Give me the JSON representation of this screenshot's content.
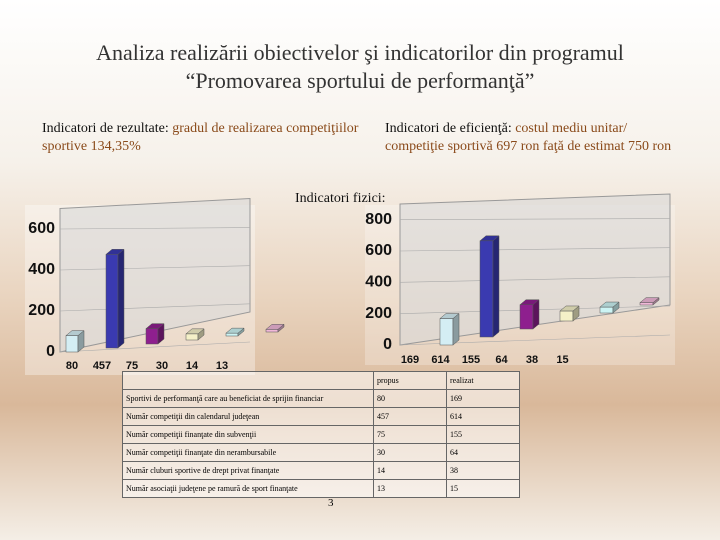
{
  "title": [
    "Analiza realizării obiectivelor şi indicatorilor din programul",
    "“Promovarea sportului de performanţă”"
  ],
  "indicators": {
    "results": {
      "label": "Indicatori de rezultate:",
      "text": "gradul de realizarea competiţiilor sportive 134,35%"
    },
    "efficiency": {
      "label": "Indicatori de eficienţă:",
      "text": "costul mediu unitar/ competiţie sportivă 697 ron faţă de estimat 750 ron"
    },
    "physical": {
      "label": "Indicatori fizici:"
    }
  },
  "chart_data": [
    {
      "type": "bar3d",
      "values": [
        80,
        457,
        75,
        30,
        14,
        13
      ],
      "colors": [
        "#d4eef4",
        "#3a3ab0",
        "#8e1f8e",
        "#f4f0c8",
        "#ccf4f4",
        "#f0b8d8"
      ],
      "ylim": [
        0,
        700
      ],
      "yticks": [
        0,
        200,
        400,
        600
      ]
    },
    {
      "type": "bar3d",
      "values": [
        169,
        614,
        155,
        64,
        38,
        15
      ],
      "colors": [
        "#d4eef4",
        "#3a3ab0",
        "#8e1f8e",
        "#f4f0c8",
        "#ccf4f4",
        "#f0b8d8"
      ],
      "ylim": [
        0,
        900
      ],
      "yticks": [
        0,
        200,
        400,
        600,
        800
      ]
    }
  ],
  "table": {
    "header": [
      "propus",
      "realizat"
    ],
    "rows": [
      [
        "Sportivi de performanţă care au beneficiat de sprijin financiar",
        "80",
        "169"
      ],
      [
        "Număr competiţii din calendarul judeţean",
        "457",
        "614"
      ],
      [
        "Număr competiţii finanţate din subvenţii",
        "75",
        "155"
      ],
      [
        "Număr competiţii finanţate din nerambursabile",
        "30",
        "64"
      ],
      [
        "Număr cluburi sportive de drept privat finanţate",
        "14",
        "38"
      ],
      [
        "Număr asociaţii judeţene pe ramură de sport finanţate",
        "13",
        "15"
      ]
    ]
  },
  "page_number": "3"
}
